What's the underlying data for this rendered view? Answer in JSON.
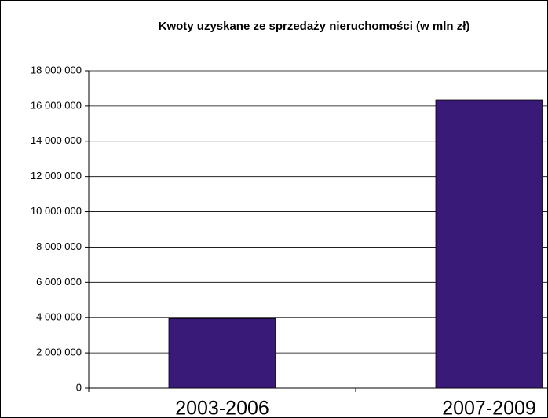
{
  "chart_data": {
    "type": "bar",
    "title": "Kwoty uzyskane ze sprzedaży nieruchomości (w mln zł)",
    "categories": [
      "2003-2006",
      "2007-2009"
    ],
    "values": [
      3950000,
      16350000
    ],
    "color": "#3a1a78",
    "ylim": [
      0,
      18000000
    ],
    "yticks": [
      0,
      {
        "value": 2000000,
        "label": "2 000 000"
      },
      {
        "value": 4000000,
        "label": "4 000 000"
      },
      {
        "value": 6000000,
        "label": "6 000 000"
      },
      {
        "value": 8000000,
        "label": "8 000 000"
      },
      {
        "value": 10000000,
        "label": "10 000 000"
      },
      {
        "value": 12000000,
        "label": "12 000 000"
      },
      {
        "value": 14000000,
        "label": "14 000 000"
      },
      {
        "value": 16000000,
        "label": "16 000 000"
      },
      {
        "value": 18000000,
        "label": "18 000 000"
      }
    ],
    "grid": true
  }
}
